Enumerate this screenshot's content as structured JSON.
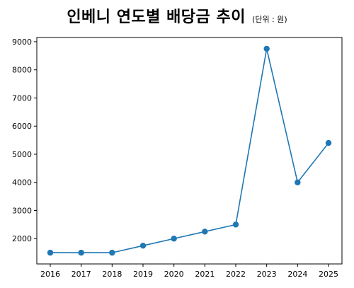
{
  "chart_data": {
    "type": "line",
    "title": "인베니 연도별 배당금 추이",
    "subtitle": "(단위 : 원)",
    "xlabel": "",
    "ylabel": "",
    "x": [
      "2016",
      "2017",
      "2018",
      "2019",
      "2020",
      "2021",
      "2022",
      "2023",
      "2024",
      "2025"
    ],
    "series": [
      {
        "values": [
          1500,
          1500,
          1500,
          1750,
          2000,
          2250,
          2500,
          8750,
          4000,
          5400
        ]
      }
    ],
    "ylim": [
      1100,
      9150
    ],
    "yticks": [
      2000,
      3000,
      4000,
      5000,
      6000,
      7000,
      8000,
      9000
    ],
    "grid": false,
    "line_color": "#1f77b4"
  }
}
